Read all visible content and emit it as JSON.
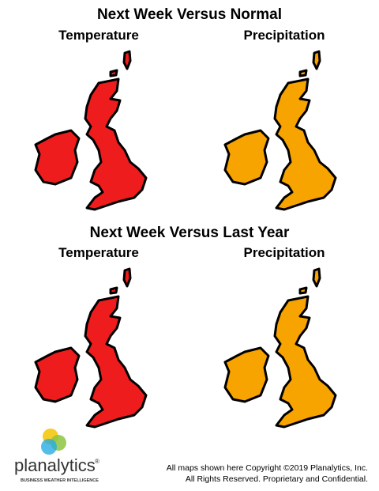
{
  "sections": [
    {
      "title": "Next Week Versus Normal",
      "labels": [
        "Temperature",
        "Precipitation"
      ]
    },
    {
      "title": "Next Week Versus Last Year",
      "labels": [
        "Temperature",
        "Precipitation"
      ]
    }
  ],
  "logo": {
    "name": "planalytics",
    "registered": "®",
    "tagline": "BUSINESS WEATHER INTELLIGENCE"
  },
  "footer": [
    "All maps shown here Copyright ©2019 Planalytics, Inc.",
    "All Rights Reserved. Proprietary and Confidential."
  ]
}
